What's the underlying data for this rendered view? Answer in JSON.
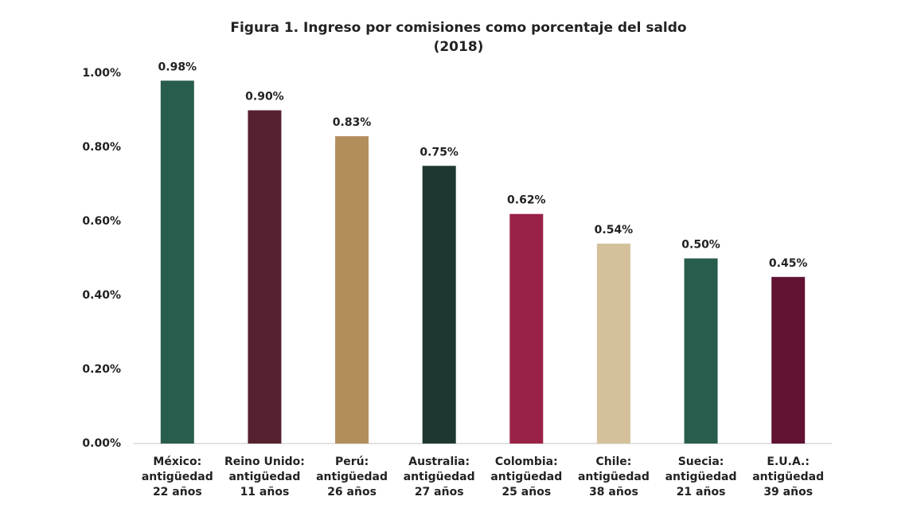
{
  "chart_data": {
    "type": "bar",
    "title": "Figura 1. Ingreso por comisiones como porcentaje del saldo",
    "subtitle": "(2018)",
    "categories": [
      [
        "México:",
        "antigüedad",
        "22 años"
      ],
      [
        "Reino Unido:",
        "antigüedad",
        "11 años"
      ],
      [
        "Perú:",
        "antigüedad",
        "26 años"
      ],
      [
        "Australia:",
        "antigüedad",
        "27 años"
      ],
      [
        "Colombia:",
        "antigüedad",
        "25 años"
      ],
      [
        "Chile:",
        "antigüedad",
        "38 años"
      ],
      [
        "Suecia:",
        "antigüedad",
        "21 años"
      ],
      [
        "E.U.A.:",
        "antigüedad",
        "39 años"
      ]
    ],
    "values": [
      0.98,
      0.9,
      0.83,
      0.75,
      0.62,
      0.54,
      0.5,
      0.45
    ],
    "value_labels": [
      "0.98%",
      "0.90%",
      "0.83%",
      "0.75%",
      "0.62%",
      "0.54%",
      "0.50%",
      "0.45%"
    ],
    "colors": [
      "#285c4d",
      "#56212f",
      "#b38e5d",
      "#1e3831",
      "#9b2247",
      "#d4c19c",
      "#285c4d",
      "#611232"
    ],
    "ylim": [
      0,
      1
    ],
    "yticks": [
      {
        "value": 0,
        "label": "0.00%"
      },
      {
        "value": 0.2,
        "label": "0.20%"
      },
      {
        "value": 0.4,
        "label": "0.40%"
      },
      {
        "value": 0.6,
        "label": "0.60%"
      },
      {
        "value": 0.8,
        "label": "0.80%"
      },
      {
        "value": 1,
        "label": "1.00%"
      }
    ],
    "grid": false
  }
}
